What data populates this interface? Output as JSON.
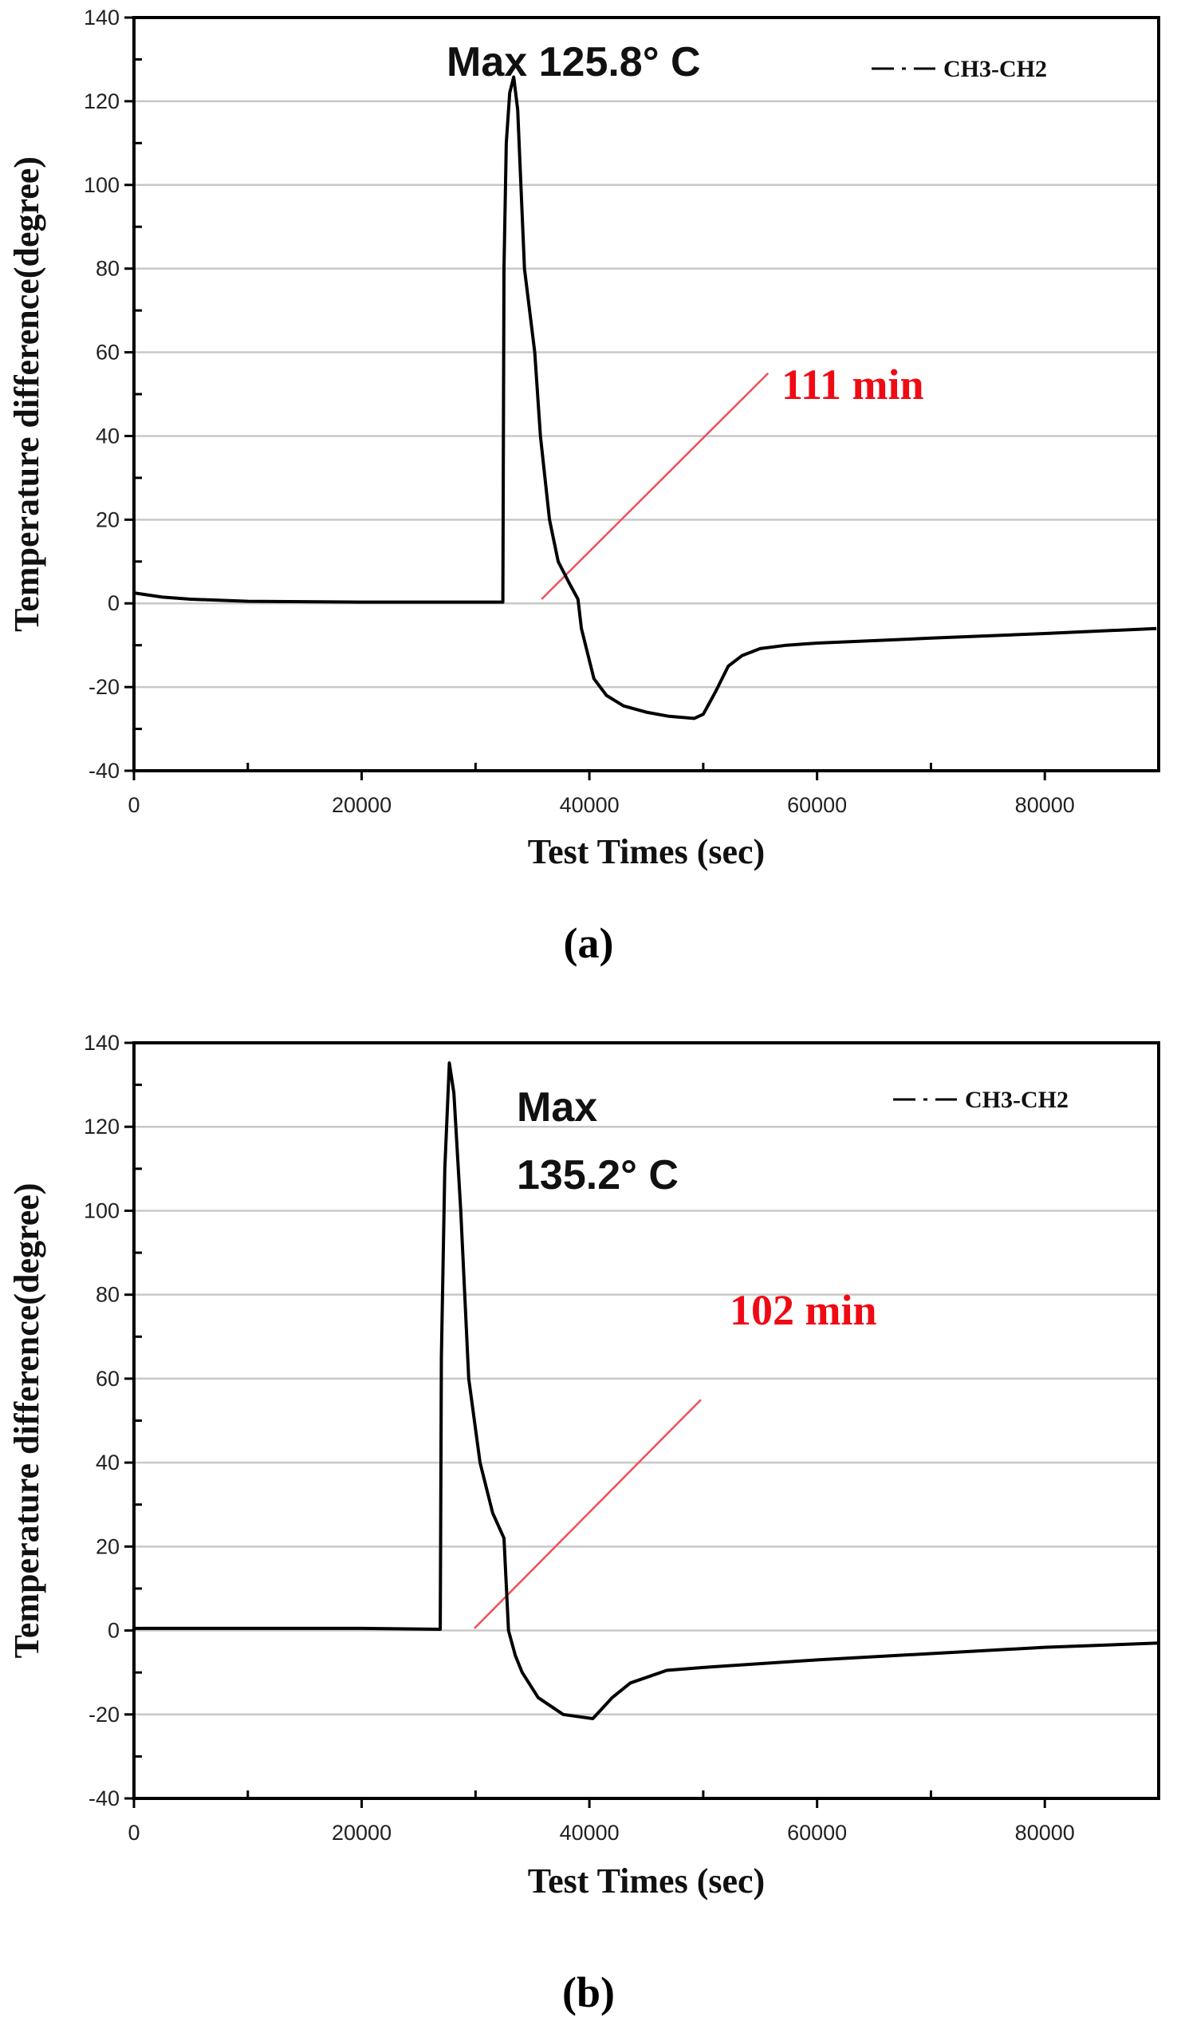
{
  "chart_data": [
    {
      "type": "line",
      "panel_label": "(a)",
      "xlabel": "Test Times (sec)",
      "ylabel": "Temperature difference(degree)",
      "xlim": [
        0,
        90000
      ],
      "ylim": [
        -40,
        140
      ],
      "xticks": [
        0,
        20000,
        40000,
        60000,
        80000
      ],
      "yticks": [
        -40,
        -20,
        0,
        20,
        40,
        60,
        80,
        100,
        120,
        140
      ],
      "grid": true,
      "legend": {
        "label": "CH3-CH2",
        "placement": "top-right"
      },
      "annotations": [
        "Max 125.8° C"
      ],
      "marker_line": {
        "x": [
          35800,
          55700
        ],
        "y": [
          1,
          55
        ],
        "label": "111 min",
        "color": "#f0505a"
      },
      "series": [
        {
          "name": "CH3-CH2",
          "x": [
            0,
            2500,
            5000,
            10000,
            20000,
            32400,
            32500,
            32700,
            33000,
            33350,
            33700,
            34300,
            35200,
            35700,
            36500,
            37260,
            38200,
            39000,
            39300,
            40400,
            41500,
            43000,
            45000,
            47000,
            49200,
            50000,
            51100,
            52200,
            53400,
            55000,
            57300,
            60000,
            70000,
            80000,
            89800
          ],
          "y": [
            2.5,
            1.5,
            1,
            0.5,
            0.3,
            0.3,
            80,
            110,
            122,
            125.8,
            118,
            80,
            60,
            40,
            20,
            10,
            5,
            1,
            -6,
            -18,
            -22,
            -24.5,
            -26,
            -27,
            -27.5,
            -26.5,
            -21,
            -15,
            -12.5,
            -10.8,
            -10,
            -9.5,
            -8.3,
            -7.2,
            -6
          ]
        }
      ]
    },
    {
      "type": "line",
      "panel_label": "(b)",
      "xlabel": "Test Times (sec)",
      "ylabel": "Temperature difference(degree)",
      "xlim": [
        0,
        90000
      ],
      "ylim": [
        -40,
        140
      ],
      "xticks": [
        0,
        20000,
        40000,
        60000,
        80000
      ],
      "yticks": [
        -40,
        -20,
        0,
        20,
        40,
        60,
        80,
        100,
        120,
        140
      ],
      "grid": true,
      "legend": {
        "label": "CH3-CH2",
        "placement": "top-right"
      },
      "annotations": [
        "Max",
        "135.2° C"
      ],
      "marker_line": {
        "x": [
          29900,
          49800
        ],
        "y": [
          0.5,
          55
        ],
        "label": "102 min",
        "color": "#f0505a"
      },
      "series": [
        {
          "name": "CH3-CH2",
          "x": [
            0,
            10000,
            20000,
            26900,
            27000,
            27300,
            27700,
            28100,
            28700,
            29400,
            30400,
            31500,
            32500,
            32900,
            33500,
            34100,
            35500,
            37700,
            40300,
            42000,
            43600,
            46800,
            50000,
            60000,
            70000,
            80000,
            90000
          ],
          "y": [
            0.5,
            0.5,
            0.5,
            0.3,
            65,
            110,
            135.2,
            128,
            100,
            60,
            40,
            28,
            22,
            0,
            -6,
            -10,
            -16,
            -20,
            -21,
            -16,
            -12.5,
            -9.5,
            -8.8,
            -7,
            -5.5,
            -4,
            -3
          ]
        }
      ]
    }
  ]
}
